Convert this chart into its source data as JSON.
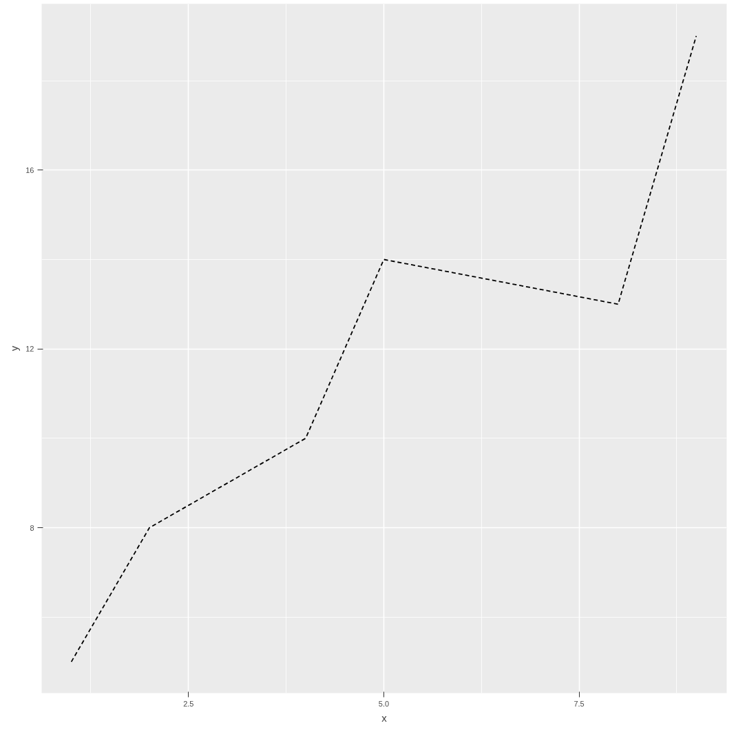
{
  "chart_data": {
    "type": "line",
    "xlabel": "x",
    "ylabel": "y",
    "x": [
      1,
      2,
      4,
      5,
      8,
      9
    ],
    "series": [
      {
        "color": "#000000",
        "values": [
          5,
          8,
          10,
          14,
          13,
          19
        ]
      }
    ],
    "xlim": [
      0.62,
      9.39
    ],
    "ylim": [
      4.3,
      19.72
    ],
    "xticks": [
      2.5,
      {
        "value": 5,
        "label": "5.0"
      },
      7.5
    ],
    "yticks": [
      8,
      12,
      16
    ],
    "grid": true,
    "line_style": "dashed"
  }
}
